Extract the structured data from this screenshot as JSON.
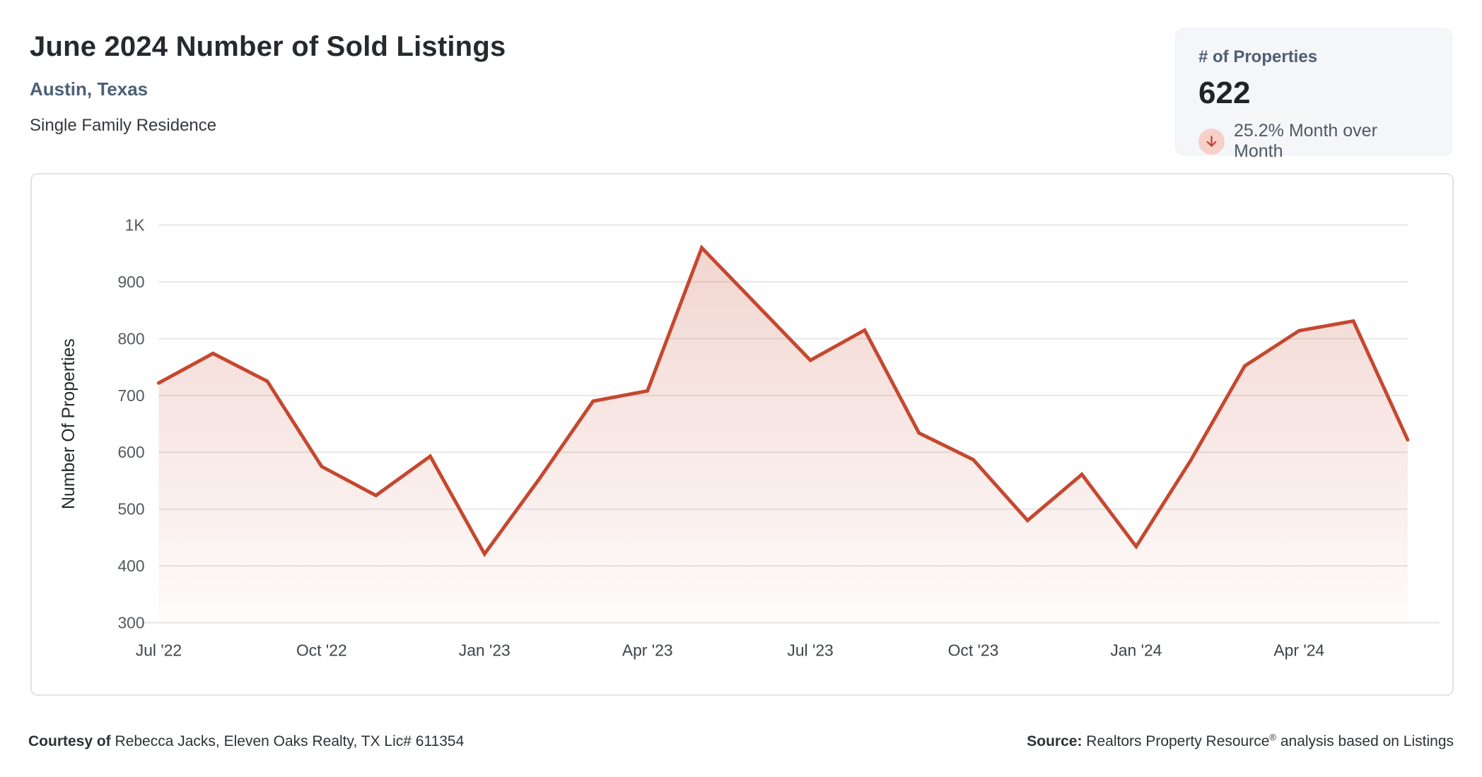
{
  "header": {
    "title": "June 2024 Number of Sold Listings",
    "location": "Austin, Texas",
    "property_type": "Single Family Residence"
  },
  "stats_card": {
    "label": "# of Properties",
    "value": "622",
    "change_text": "25.2% Month over Month",
    "direction": "down",
    "arrow_icon": "down-arrow",
    "arrow_color": "#c0442f",
    "arrow_bg_color": "#f6d0c8"
  },
  "chart_data": {
    "type": "area",
    "title": "",
    "xlabel": "",
    "ylabel": "Number Of Properties",
    "x": [
      "Jul '22",
      "Aug '22",
      "Sep '22",
      "Oct '22",
      "Nov '22",
      "Dec '22",
      "Jan '23",
      "Feb '23",
      "Mar '23",
      "Apr '23",
      "May '23",
      "Jun '23",
      "Jul '23",
      "Aug '23",
      "Sep '23",
      "Oct '23",
      "Nov '23",
      "Dec '23",
      "Jan '24",
      "Feb '24",
      "Mar '24",
      "Apr '24",
      "May '24",
      "Jun '24"
    ],
    "values": [
      722,
      774,
      725,
      575,
      524,
      593,
      421,
      552,
      690,
      708,
      960,
      861,
      762,
      815,
      634,
      587,
      480,
      561,
      434,
      585,
      752,
      814,
      831,
      622
    ],
    "x_tick_every": 3,
    "x_tick_labels": [
      "Jul '22",
      "Oct '22",
      "Jan '23",
      "Apr '23",
      "Jul '23",
      "Oct '23",
      "Jan '24",
      "Apr '24"
    ],
    "y_ticks": [
      300,
      400,
      500,
      600,
      700,
      800,
      900,
      1000
    ],
    "y_tick_labels": [
      "300",
      "400",
      "500",
      "600",
      "700",
      "800",
      "900",
      "1K"
    ],
    "ylim": [
      300,
      1000
    ],
    "grid": true,
    "legend": "none",
    "line_color": "#c5482f",
    "fill_color_top": "rgba(197,72,47,0.24)",
    "fill_color_bottom": "rgba(197,72,47,0.02)",
    "grid_color": "#e7e7e7",
    "tick_color": "#55595d",
    "x_tick_color": "#3f4347"
  },
  "footer": {
    "courtesy_prefix": "Courtesy of",
    "courtesy_text": "Rebecca Jacks, Eleven Oaks Realty, TX Lic# 611354",
    "source_prefix": "Source:",
    "source_brand": "Realtors Property Resource",
    "source_reg": "®",
    "source_suffix": "analysis based on Listings"
  }
}
